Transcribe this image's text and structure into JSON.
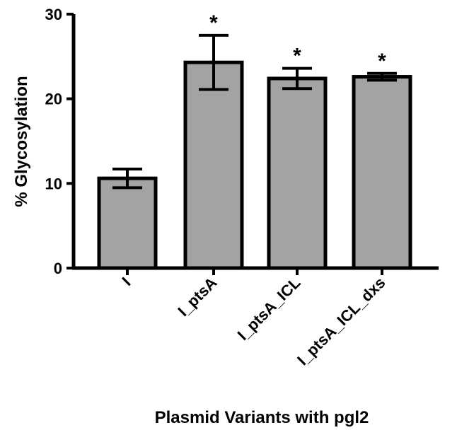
{
  "chart_data": {
    "type": "bar",
    "title": "",
    "xlabel": "Plasmid Variants with pgl2",
    "ylabel": "% Glycosylation",
    "ylim": [
      0,
      30
    ],
    "yticks": [
      0,
      10,
      20,
      30
    ],
    "categories": [
      "I",
      "I_ptsA",
      "I_ptsA_ICL",
      "I_ptsA_ICL_dxs"
    ],
    "values": [
      10.6,
      24.3,
      22.4,
      22.6
    ],
    "error": [
      1.1,
      3.2,
      1.2,
      0.4
    ],
    "significance": [
      "",
      "*",
      "*",
      "*"
    ],
    "bar_color": "#a3a3a6",
    "edge_color": "#000000",
    "grid": false
  }
}
